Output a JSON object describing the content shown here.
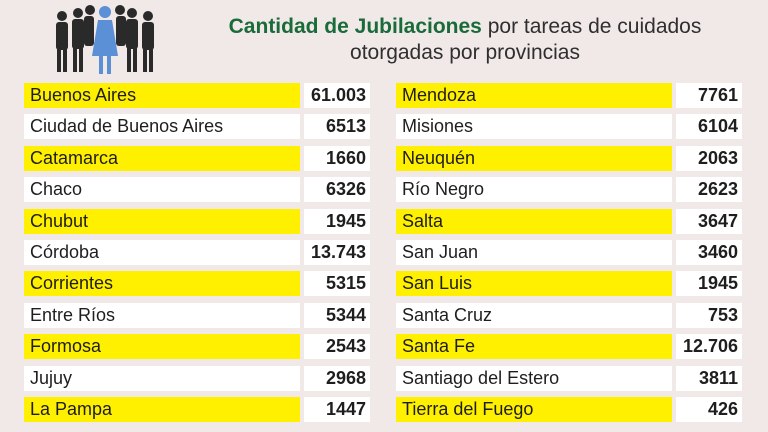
{
  "title": {
    "strong": "Cantidad de Jubilaciones",
    "rest_line1": "por tareas de cuidados",
    "line2": "otorgadas por provincias"
  },
  "colors": {
    "highlight": "#fff000",
    "title_green": "#1a6b3a",
    "figure_dark": "#2a2a2a",
    "figure_accent": "#5b8fd6"
  },
  "chart_data": {
    "type": "table",
    "columns": [
      [
        {
          "province": "Buenos Aires",
          "value": "61.003"
        },
        {
          "province": "Ciudad de Buenos Aires",
          "value": "6513"
        },
        {
          "province": "Catamarca",
          "value": "1660"
        },
        {
          "province": "Chaco",
          "value": "6326"
        },
        {
          "province": "Chubut",
          "value": "1945"
        },
        {
          "province": "Córdoba",
          "value": "13.743"
        },
        {
          "province": "Corrientes",
          "value": "5315"
        },
        {
          "province": "Entre Ríos",
          "value": "5344"
        },
        {
          "province": "Formosa",
          "value": "2543"
        },
        {
          "province": "Jujuy",
          "value": "2968"
        },
        {
          "province": "La Pampa",
          "value": "1447"
        }
      ],
      [
        {
          "province": "Mendoza",
          "value": "7761"
        },
        {
          "province": "Misiones",
          "value": "6104"
        },
        {
          "province": "Neuquén",
          "value": "2063"
        },
        {
          "province": "Río Negro",
          "value": "2623"
        },
        {
          "province": "Salta",
          "value": "3647"
        },
        {
          "province": "San Juan",
          "value": "3460"
        },
        {
          "province": "San Luis",
          "value": "1945"
        },
        {
          "province": "Santa Cruz",
          "value": "753"
        },
        {
          "province": "Santa Fe",
          "value": "12.706"
        },
        {
          "province": "Santiago del Estero",
          "value": "3811"
        },
        {
          "province": "Tierra del Fuego",
          "value": "426"
        }
      ]
    ]
  }
}
